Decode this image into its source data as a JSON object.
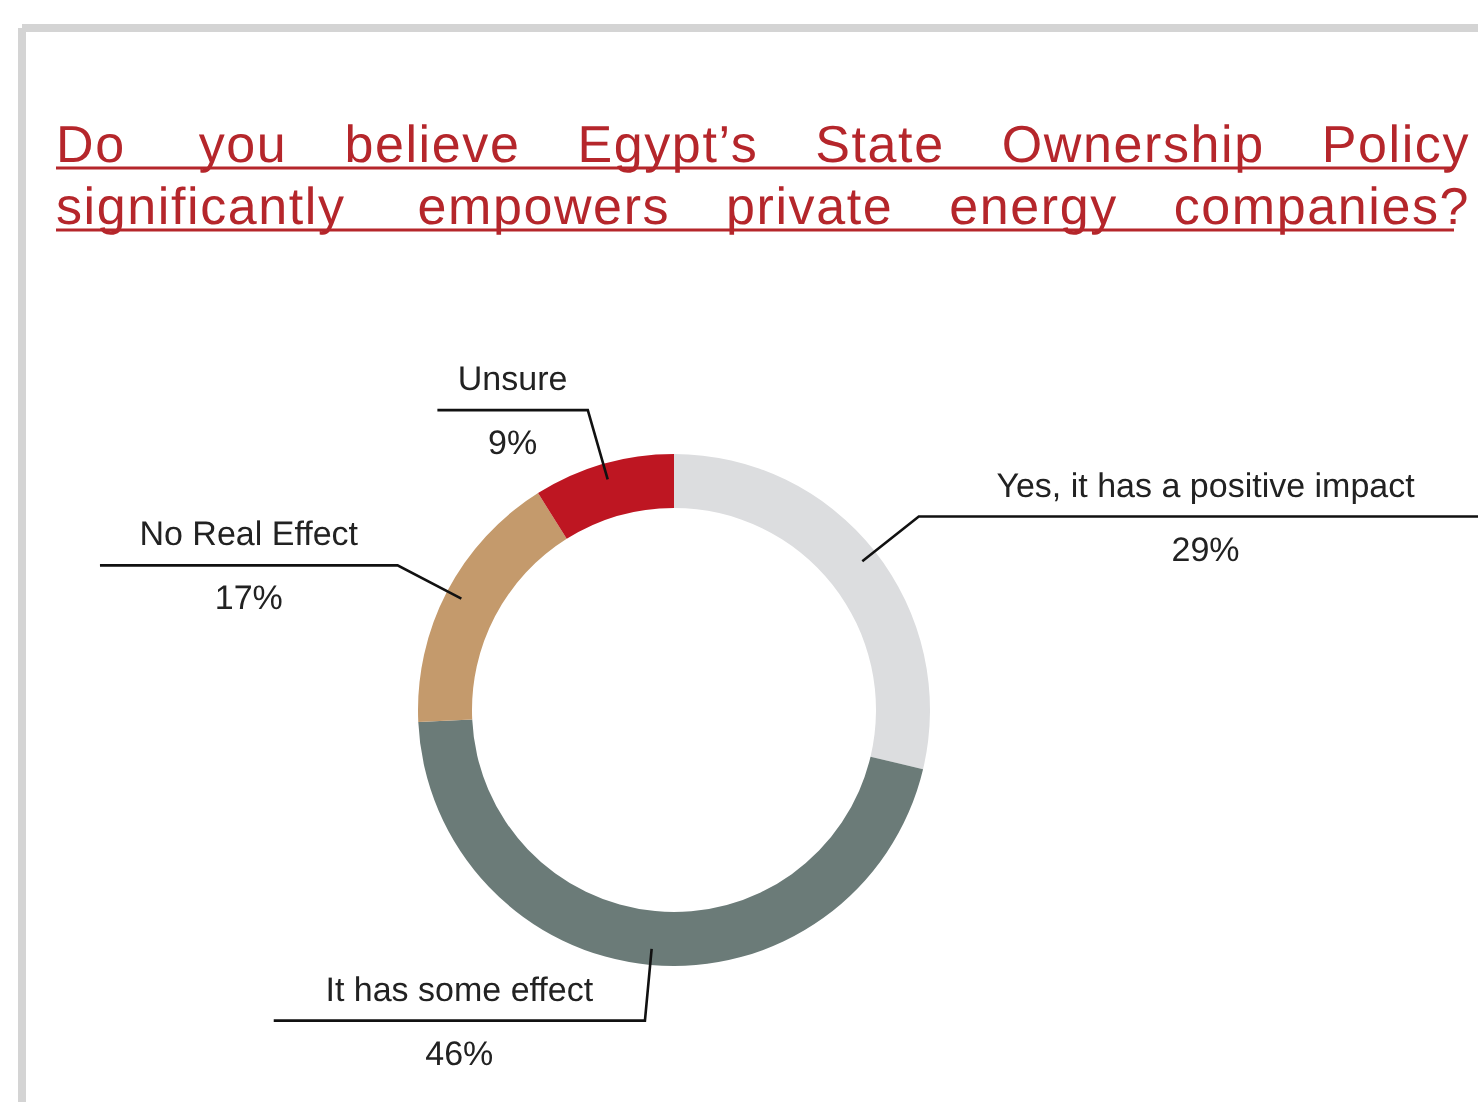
{
  "chart_data": {
    "type": "donut",
    "title": "Do you believe Egypt’s State Ownership Policy significantly empowers private energy companies?",
    "categories": [
      "Yes, it has a positive impact",
      "It has some effect",
      "No Real Effect",
      "Unsure"
    ],
    "values": [
      29,
      46,
      17,
      9
    ],
    "value_labels": [
      "29%",
      "46%",
      "17%",
      "9%"
    ],
    "colors": [
      "#dcdddf",
      "#6b7b78",
      "#c49a6c",
      "#be1622"
    ],
    "legend": false
  }
}
